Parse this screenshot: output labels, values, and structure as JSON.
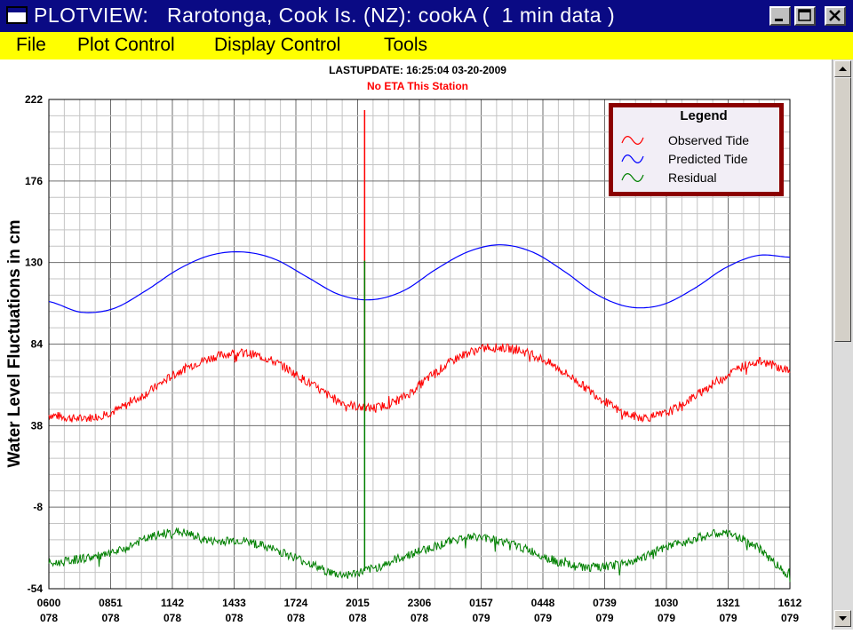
{
  "window": {
    "title": "PLOTVIEW:   Rarotonga, Cook Is. (NZ): cookA (  1 min data )",
    "icon": "app-window-icon",
    "controls": [
      "minimize-icon",
      "maximize-icon",
      "close-icon"
    ],
    "title_bg": "#0a0a84"
  },
  "menu": {
    "items": [
      "File",
      "Plot Control",
      "Display Control",
      "Tools"
    ],
    "bg": "#ffff00"
  },
  "chart_data": {
    "type": "line",
    "lastupdate": "LASTUPDATE: 16:25:04  03-20-2009",
    "subtitle": "No ETA This Station",
    "ylabel": "Water Level Fluctuations in cm",
    "ylim": [
      -54,
      222
    ],
    "yticks": [
      222,
      176,
      130,
      84,
      38,
      -8,
      -54
    ],
    "xticks": [
      {
        "time": "0600",
        "day": "078"
      },
      {
        "time": "0851",
        "day": "078"
      },
      {
        "time": "1142",
        "day": "078"
      },
      {
        "time": "1433",
        "day": "078"
      },
      {
        "time": "1724",
        "day": "078"
      },
      {
        "time": "2015",
        "day": "078"
      },
      {
        "time": "2306",
        "day": "078"
      },
      {
        "time": "0157",
        "day": "079"
      },
      {
        "time": "0448",
        "day": "079"
      },
      {
        "time": "0739",
        "day": "079"
      },
      {
        "time": "1030",
        "day": "079"
      },
      {
        "time": "1321",
        "day": "079"
      },
      {
        "time": "1612",
        "day": "079"
      }
    ],
    "grid": true,
    "legend": {
      "title": "Legend",
      "placement": "top-right",
      "entries": [
        {
          "name": "Observed Tide",
          "color": "#ff0000"
        },
        {
          "name": "Predicted Tide",
          "color": "#0000ff"
        },
        {
          "name": "Residual",
          "color": "#008000"
        }
      ]
    },
    "series": [
      {
        "name": "Predicted Tide",
        "color": "#0000ff",
        "values": [
          108,
          102,
          104,
          114,
          126,
          134,
          136,
          132,
          122,
          112,
          109,
          114,
          126,
          136,
          140,
          136,
          125,
          112,
          105,
          106,
          115,
          127,
          134,
          133
        ]
      },
      {
        "name": "Observed Tide",
        "color": "#ff0000",
        "values": [
          44,
          42,
          46,
          56,
          68,
          76,
          79,
          74,
          63,
          52,
          48,
          54,
          68,
          79,
          82,
          78,
          68,
          55,
          44,
          44,
          54,
          66,
          74,
          69
        ]
      },
      {
        "name": "Residual",
        "color": "#008000",
        "values": [
          -40,
          -37,
          -34,
          -26,
          -22,
          -27,
          -27,
          -32,
          -39,
          -46,
          -43,
          -36,
          -30,
          -25,
          -27,
          -33,
          -40,
          -42,
          -39,
          -32,
          -26,
          -23,
          -31,
          -46
        ]
      }
    ],
    "spikes": [
      {
        "series": "Observed Tide",
        "x_index": 9.8,
        "value": 216
      },
      {
        "series": "Residual",
        "x_index": 9.8,
        "value": 131
      }
    ]
  }
}
